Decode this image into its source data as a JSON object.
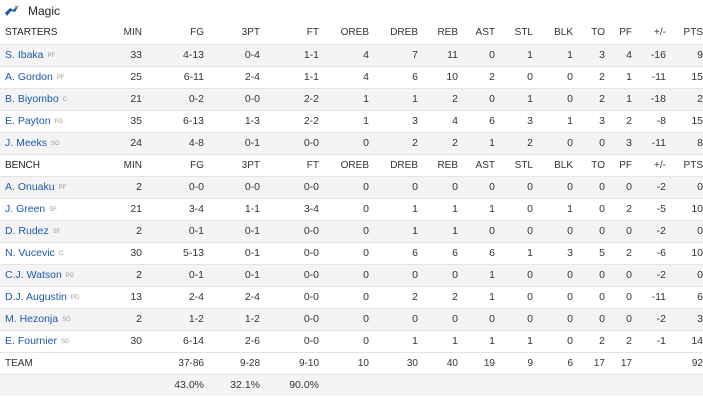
{
  "team": {
    "name": "Magic"
  },
  "columns": [
    "MIN",
    "FG",
    "3PT",
    "FT",
    "OREB",
    "DREB",
    "REB",
    "AST",
    "STL",
    "BLK",
    "TO",
    "PF",
    "+/-",
    "PTS"
  ],
  "starters": {
    "label": "STARTERS",
    "players": [
      {
        "name": "S. Ibaka",
        "pos": "PF",
        "stats": [
          "33",
          "4-13",
          "0-4",
          "1-1",
          "4",
          "7",
          "11",
          "0",
          "1",
          "1",
          "3",
          "4",
          "-16",
          "9"
        ]
      },
      {
        "name": "A. Gordon",
        "pos": "PF",
        "stats": [
          "25",
          "6-11",
          "2-4",
          "1-1",
          "4",
          "6",
          "10",
          "2",
          "0",
          "0",
          "2",
          "1",
          "-11",
          "15"
        ]
      },
      {
        "name": "B. Biyombo",
        "pos": "C",
        "stats": [
          "21",
          "0-2",
          "0-0",
          "2-2",
          "1",
          "1",
          "2",
          "0",
          "1",
          "0",
          "2",
          "1",
          "-18",
          "2"
        ]
      },
      {
        "name": "E. Payton",
        "pos": "PG",
        "stats": [
          "35",
          "6-13",
          "1-3",
          "2-2",
          "1",
          "3",
          "4",
          "6",
          "3",
          "1",
          "3",
          "2",
          "-8",
          "15"
        ]
      },
      {
        "name": "J. Meeks",
        "pos": "SG",
        "stats": [
          "24",
          "4-8",
          "0-1",
          "0-0",
          "0",
          "2",
          "2",
          "1",
          "2",
          "0",
          "0",
          "3",
          "-11",
          "8"
        ]
      }
    ]
  },
  "bench": {
    "label": "BENCH",
    "players": [
      {
        "name": "A. Onuaku",
        "pos": "PF",
        "stats": [
          "2",
          "0-0",
          "0-0",
          "0-0",
          "0",
          "0",
          "0",
          "0",
          "0",
          "0",
          "0",
          "0",
          "-2",
          "0"
        ]
      },
      {
        "name": "J. Green",
        "pos": "SF",
        "stats": [
          "21",
          "3-4",
          "1-1",
          "3-4",
          "0",
          "1",
          "1",
          "1",
          "0",
          "1",
          "0",
          "2",
          "-5",
          "10"
        ]
      },
      {
        "name": "D. Rudez",
        "pos": "SF",
        "stats": [
          "2",
          "0-1",
          "0-1",
          "0-0",
          "0",
          "1",
          "1",
          "0",
          "0",
          "0",
          "0",
          "0",
          "-2",
          "0"
        ]
      },
      {
        "name": "N. Vucevic",
        "pos": "C",
        "stats": [
          "30",
          "5-13",
          "0-1",
          "0-0",
          "0",
          "6",
          "6",
          "6",
          "1",
          "3",
          "5",
          "2",
          "-6",
          "10"
        ]
      },
      {
        "name": "C.J. Watson",
        "pos": "PG",
        "stats": [
          "2",
          "0-1",
          "0-1",
          "0-0",
          "0",
          "0",
          "0",
          "1",
          "0",
          "0",
          "0",
          "0",
          "-2",
          "0"
        ]
      },
      {
        "name": "D.J. Augustin",
        "pos": "PG",
        "stats": [
          "13",
          "2-4",
          "2-4",
          "0-0",
          "0",
          "2",
          "2",
          "1",
          "0",
          "0",
          "0",
          "0",
          "-11",
          "6"
        ]
      },
      {
        "name": "M. Hezonja",
        "pos": "SG",
        "stats": [
          "2",
          "1-2",
          "1-2",
          "0-0",
          "0",
          "0",
          "0",
          "0",
          "0",
          "0",
          "0",
          "0",
          "-2",
          "3"
        ]
      },
      {
        "name": "E. Fournier",
        "pos": "SG",
        "stats": [
          "30",
          "6-14",
          "2-6",
          "0-0",
          "0",
          "1",
          "1",
          "1",
          "1",
          "0",
          "2",
          "2",
          "-1",
          "14"
        ]
      }
    ]
  },
  "totals": {
    "label": "TEAM",
    "stats": [
      "",
      "37-86",
      "9-28",
      "9-10",
      "10",
      "30",
      "40",
      "19",
      "9",
      "6",
      "17",
      "17",
      "",
      "92"
    ]
  },
  "percentages": {
    "fg": "43.0%",
    "three": "32.1%",
    "ft": "90.0%"
  },
  "colors": {
    "link": "#1a5aa8",
    "alt_row": "#f4f4f4",
    "border": "#e4e4e4",
    "logo": "#1a5aa8"
  }
}
